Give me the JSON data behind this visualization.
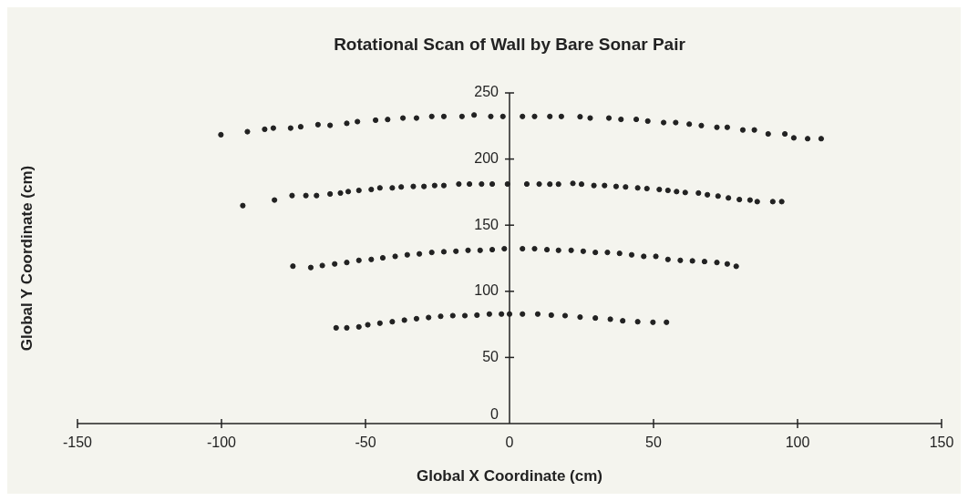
{
  "chart_data": {
    "type": "scatter",
    "title": "Rotational Scan of Wall by Bare Sonar Pair",
    "xlabel": "Global X Coordinate (cm)",
    "ylabel": "Global Y Coordinate (cm)",
    "xlim": [
      -150,
      150
    ],
    "xticks": [
      -150,
      -100,
      -50,
      0,
      50,
      100,
      150
    ],
    "ylim": [
      0,
      250
    ],
    "yticks": [
      0,
      50,
      100,
      150,
      200,
      250
    ],
    "legend": false,
    "marker": "circle",
    "series": [
      {
        "color": "#222222",
        "x": [
          -100.2,
          -91,
          -85,
          -82,
          -76,
          -72.5,
          -66.5,
          -62.3,
          -56.5,
          -52.8,
          -46.5,
          -42.3,
          -37,
          -32.3,
          -27,
          -22.8,
          -16.5,
          -12.3,
          -6.5,
          -2.3,
          4.5,
          8.7,
          14,
          18,
          24.5,
          28,
          34.5,
          38.7,
          44,
          48,
          53.5,
          57.7,
          62.4,
          66.6,
          72,
          75.6,
          81,
          85,
          89.8,
          95.6,
          98.7,
          103.5,
          108.2
        ],
        "values": [
          218.4,
          220.7,
          222.5,
          223.4,
          223.4,
          224.4,
          226,
          225.5,
          227,
          228.3,
          229.4,
          229.9,
          231,
          231,
          232.2,
          232.2,
          232.2,
          233.3,
          232.2,
          232.2,
          232.2,
          232.2,
          232.2,
          232.2,
          232,
          231,
          231,
          230,
          230,
          228.7,
          227.6,
          227.6,
          226.4,
          225.3,
          224,
          224,
          222,
          222,
          219,
          219,
          216,
          215.4,
          215.4
        ]
      },
      {
        "color": "#222222",
        "x": [
          -92.6,
          -81.6,
          -75.5,
          -70.7,
          -67,
          -62.3,
          -58.7,
          -56,
          -52.3,
          -48,
          -45,
          -40.7,
          -37.6,
          -33.4,
          -29.7,
          -26,
          -22.8,
          -17.6,
          -13.9,
          -9.7,
          -6,
          -0.7,
          6,
          10.3,
          14,
          17,
          22,
          25,
          29.3,
          33,
          37,
          40.3,
          44.5,
          47.7,
          52,
          55,
          58,
          61,
          65.6,
          68.7,
          72.4,
          76,
          79.8,
          83.5,
          86,
          91.4,
          94.5
        ],
        "values": [
          164.8,
          169,
          172.4,
          172.4,
          172.4,
          173.6,
          174.3,
          175.4,
          176.3,
          177,
          178.2,
          178.2,
          178.9,
          179.3,
          179.3,
          180,
          180,
          181.1,
          181.1,
          181.1,
          181.1,
          181.1,
          181.1,
          181.1,
          181,
          181,
          181.6,
          181,
          180,
          180,
          179.3,
          178.9,
          178.2,
          177.7,
          177,
          176.3,
          175.4,
          174.7,
          174.3,
          173,
          172,
          170.6,
          169.4,
          169,
          167.8,
          167.8,
          167.8
        ]
      },
      {
        "color": "#222222",
        "x": [
          -75.2,
          -69,
          -65,
          -60.7,
          -56.5,
          -52.3,
          -48,
          -44,
          -39.7,
          -35.5,
          -31.3,
          -27,
          -22.8,
          -18.6,
          -14.4,
          -10.2,
          -6,
          -1.8,
          4.5,
          8.7,
          13,
          17,
          21.4,
          25.6,
          29.8,
          34,
          38.2,
          42.4,
          46.6,
          50.8,
          55,
          59.3,
          63.5,
          67.7,
          72,
          75.6,
          78.7
        ],
        "values": [
          119,
          118,
          119.5,
          120.7,
          121.8,
          123.4,
          124.1,
          125.3,
          126.4,
          127.6,
          128.3,
          129.4,
          129.9,
          130.3,
          131,
          131,
          131.5,
          132.2,
          132.2,
          132.2,
          131.5,
          131,
          131,
          130.3,
          129.4,
          129.4,
          128.7,
          127.6,
          126.4,
          126.4,
          124.1,
          123.4,
          123,
          122.5,
          121.8,
          120.7,
          118.9
        ]
      },
      {
        "color": "#222222",
        "x": [
          -60.2,
          -56.5,
          -52.3,
          -49.2,
          -45,
          -40.7,
          -36.5,
          -32.3,
          -28.1,
          -23.9,
          -19.7,
          -15.5,
          -11.3,
          -7,
          -2.8,
          0,
          4.5,
          9.8,
          14.5,
          19.3,
          24.5,
          29.8,
          35,
          39.3,
          44.5,
          49.8,
          54.5
        ],
        "values": [
          72.4,
          72.4,
          73.1,
          74.7,
          75.9,
          77,
          78.2,
          79.3,
          80.2,
          81.1,
          81.6,
          81.6,
          82,
          82.8,
          82.8,
          82.8,
          82.8,
          82.8,
          82,
          81.6,
          80.5,
          79.8,
          78.9,
          77.7,
          77,
          76.6,
          76.6
        ]
      }
    ]
  }
}
